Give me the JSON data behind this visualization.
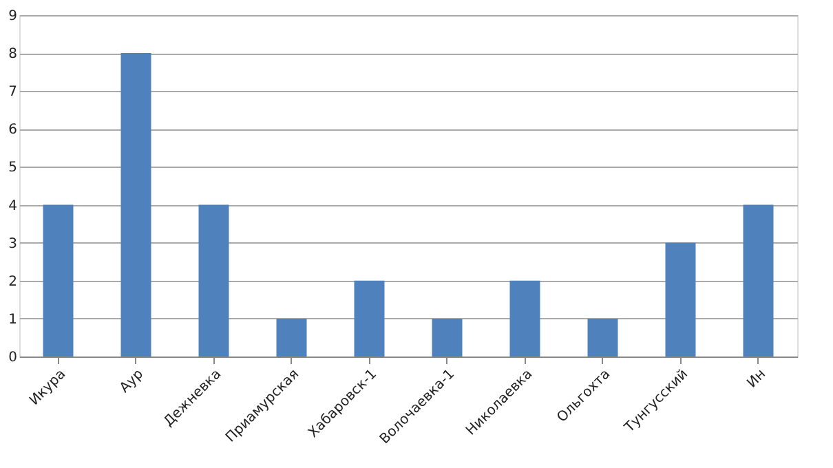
{
  "chart_data": {
    "type": "bar",
    "categories": [
      "Икура",
      "Аур",
      "Дежневка",
      "Приамурская",
      "Хабаровск-1",
      "Волочаевка-1",
      "Николаевка",
      "Ольгохта",
      "Тунгусский",
      "Ин"
    ],
    "values": [
      4,
      8,
      4,
      1,
      2,
      1,
      2,
      1,
      3,
      4
    ],
    "color": "#4f81bd",
    "ylim": [
      0,
      9
    ],
    "yticks": [
      0,
      1,
      2,
      3,
      4,
      5,
      6,
      7,
      8,
      9
    ],
    "grid": "y"
  }
}
